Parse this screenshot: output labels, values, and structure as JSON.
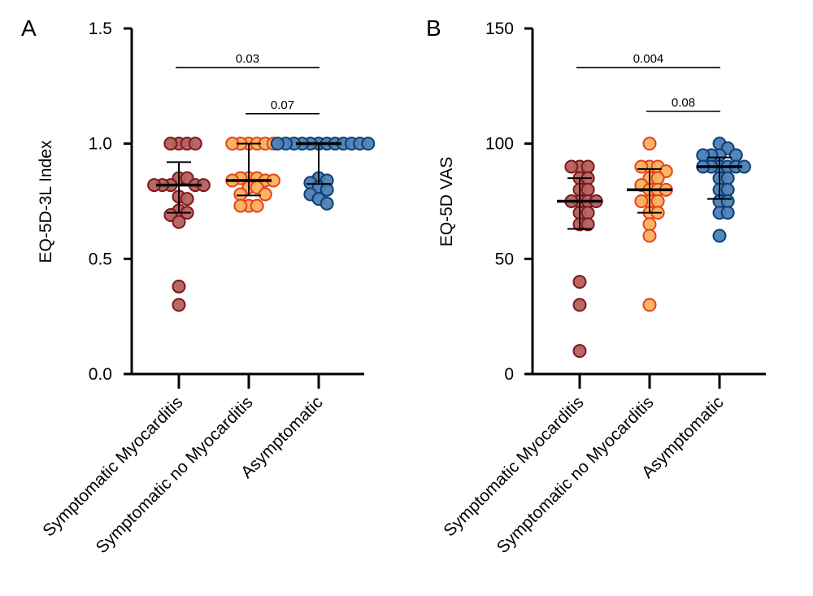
{
  "chart_data": [
    {
      "type": "scatter",
      "panel": "A",
      "title": "",
      "xlabel": "",
      "ylabel": "EQ-5D-3L Index",
      "ylim": [
        0.0,
        1.5
      ],
      "yticks": [
        0.0,
        0.5,
        1.0,
        1.5
      ],
      "ytick_labels": [
        "0.0",
        "0.5",
        "1.0",
        "1.5"
      ],
      "grid": false,
      "categories": [
        "Symptomatic Myocarditis",
        "Symptomatic no Myocarditis",
        "Asymptomatic"
      ],
      "series": [
        {
          "name": "Symptomatic Myocarditis",
          "fill": "#b5605e",
          "stroke": "#7a1a1a",
          "values": [
            1.0,
            1.0,
            1.0,
            1.0,
            0.85,
            0.85,
            0.82,
            0.82,
            0.82,
            0.82,
            0.82,
            0.77,
            0.76,
            0.71,
            0.7,
            0.69,
            0.66,
            0.38,
            0.3
          ],
          "median": 0.82,
          "q1": 0.7,
          "q3": 0.92
        },
        {
          "name": "Symptomatic no Myocarditis",
          "fill": "#f6b25e",
          "stroke": "#e8401c",
          "values": [
            1.0,
            1.0,
            1.0,
            1.0,
            1.0,
            1.0,
            0.85,
            0.85,
            0.85,
            0.84,
            0.84,
            0.84,
            0.81,
            0.81,
            0.78,
            0.78,
            0.73,
            0.73,
            0.73
          ],
          "median": 0.84,
          "q1": 0.775,
          "q3": 1.0
        },
        {
          "name": "Asymptomatic",
          "fill": "#4c7fb5",
          "stroke": "#0f3e73",
          "values": [
            1.0,
            1.0,
            1.0,
            1.0,
            1.0,
            1.0,
            1.0,
            1.0,
            1.0,
            1.0,
            1.0,
            1.0,
            0.85,
            0.84,
            0.83,
            0.81,
            0.8,
            0.78,
            0.76,
            0.74
          ],
          "median": 1.0,
          "q1": 0.825,
          "q3": 1.0
        }
      ],
      "comparisons": [
        {
          "from": "Symptomatic Myocarditis",
          "to": "Asymptomatic",
          "label": "0.03",
          "y": 1.33
        },
        {
          "from": "Symptomatic no Myocarditis",
          "to": "Asymptomatic",
          "label": "0.07",
          "y": 1.13
        }
      ]
    },
    {
      "type": "scatter",
      "panel": "B",
      "title": "",
      "xlabel": "",
      "ylabel": "EQ-5D VAS",
      "ylim": [
        0,
        150
      ],
      "yticks": [
        0,
        50,
        100,
        150
      ],
      "ytick_labels": [
        "0",
        "50",
        "100",
        "150"
      ],
      "grid": false,
      "categories": [
        "Symptomatic Myocarditis",
        "Symptomatic no Myocarditis",
        "Asymptomatic"
      ],
      "series": [
        {
          "name": "Symptomatic Myocarditis",
          "fill": "#b5605e",
          "stroke": "#7a1a1a",
          "values": [
            90,
            90,
            90,
            85,
            85,
            80,
            80,
            75,
            75,
            75,
            75,
            70,
            70,
            65,
            65,
            40,
            30,
            10
          ],
          "median": 75,
          "q1": 63,
          "q3": 85
        },
        {
          "name": "Symptomatic no Myocarditis",
          "fill": "#f6b25e",
          "stroke": "#e8401c",
          "values": [
            100,
            90,
            90,
            90,
            88,
            85,
            85,
            82,
            80,
            80,
            80,
            75,
            75,
            75,
            70,
            70,
            65,
            60,
            30
          ],
          "median": 80,
          "q1": 70,
          "q3": 89
        },
        {
          "name": "Asymptomatic",
          "fill": "#4c7fb5",
          "stroke": "#0f3e73",
          "values": [
            100,
            98,
            95,
            95,
            95,
            95,
            90,
            90,
            90,
            90,
            90,
            90,
            85,
            85,
            80,
            80,
            75,
            75,
            70,
            70,
            60
          ],
          "median": 90,
          "q1": 76,
          "q3": 94
        }
      ],
      "comparisons": [
        {
          "from": "Symptomatic Myocarditis",
          "to": "Asymptomatic",
          "label": "0.004",
          "y": 133
        },
        {
          "from": "Symptomatic no Myocarditis",
          "to": "Asymptomatic",
          "label": "0.08",
          "y": 114
        }
      ]
    }
  ]
}
